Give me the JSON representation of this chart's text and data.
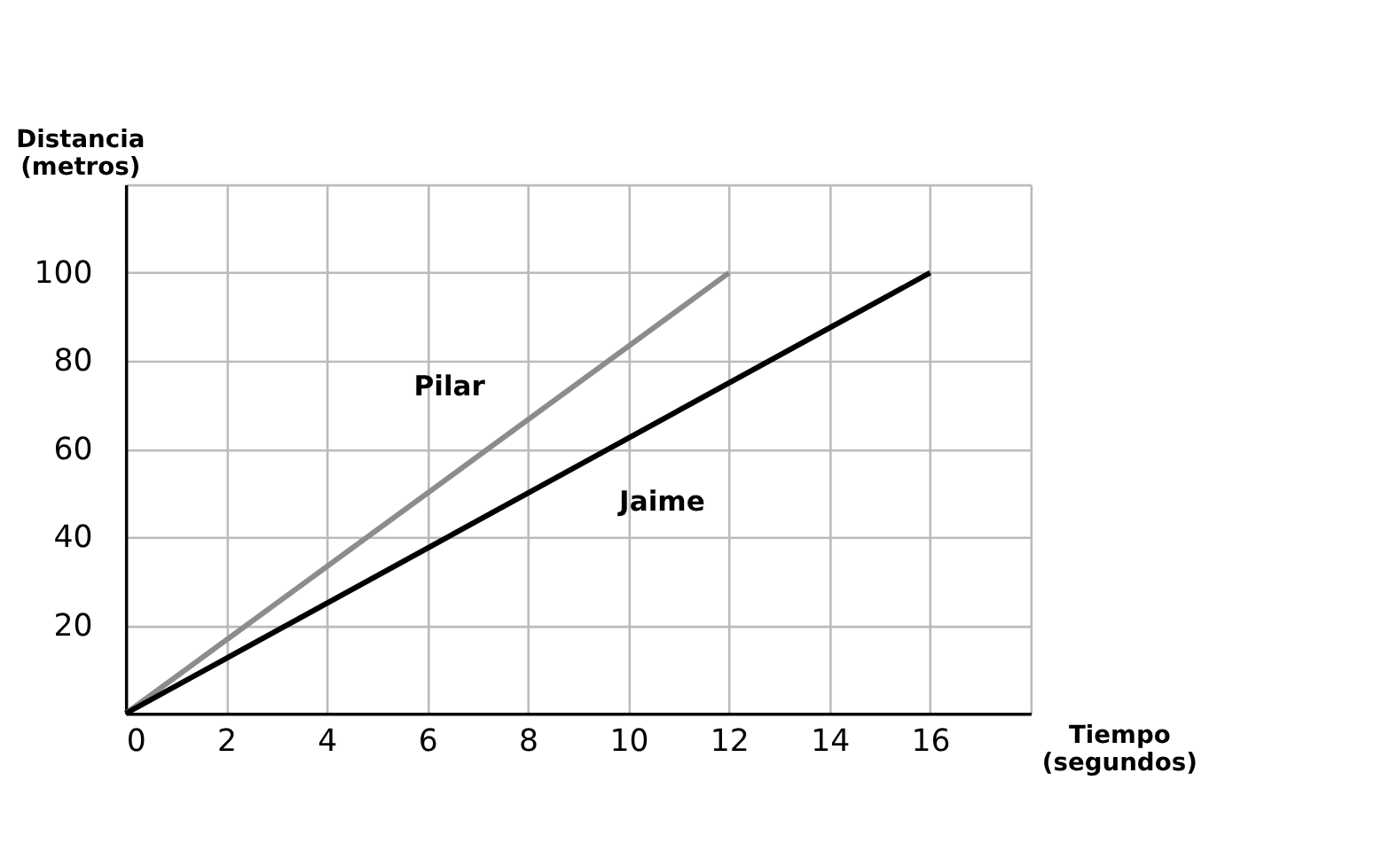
{
  "chart_data": {
    "type": "line",
    "xlabel": "Tiempo\n(segundos)",
    "ylabel": "Distancia\n(metros)",
    "xlim": [
      0,
      18
    ],
    "xticks": [
      0,
      2,
      4,
      6,
      8,
      10,
      12,
      14,
      16,
      {
        "value": 18,
        "label": null
      }
    ],
    "ylim": [
      0,
      120
    ],
    "yticks": [
      {
        "value": 0,
        "label": null
      },
      20,
      40,
      60,
      80,
      100,
      {
        "value": 120,
        "label": null
      }
    ],
    "grid": true,
    "legend": false,
    "marker": "none",
    "line_style": "solid",
    "series": [
      {
        "name": "Pilar",
        "color": "#8c8c8c",
        "x": [
          0,
          12
        ],
        "values": [
          0,
          100
        ]
      },
      {
        "name": "Jaime",
        "color": "#000000",
        "x": [
          0,
          16
        ],
        "values": [
          0,
          100
        ]
      }
    ]
  }
}
